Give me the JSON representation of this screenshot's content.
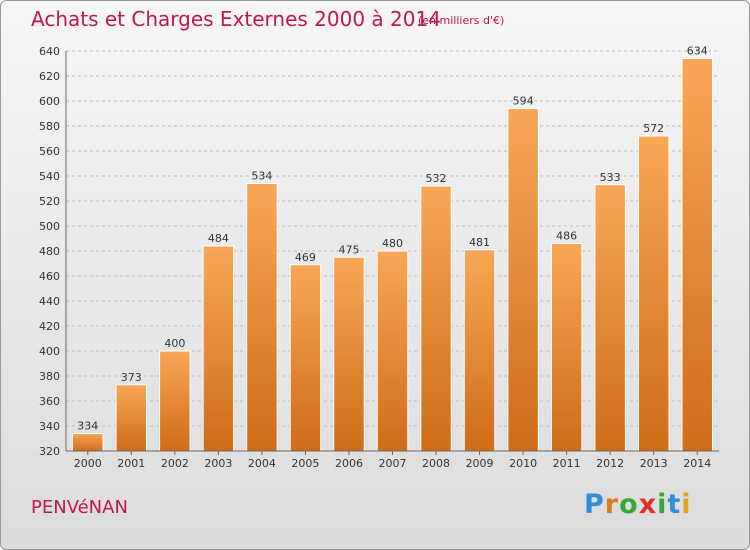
{
  "title": "Achats et Charges Externes 2000 à 2014",
  "unit": "(en milliers d'€)",
  "commune": "PENVéNAN",
  "brand": {
    "letters": [
      "P",
      "r",
      "o",
      "x",
      "i",
      "t",
      "i"
    ],
    "colors": [
      "#2f8fd6",
      "#e07a1e",
      "#3aa63a",
      "#e0302b",
      "#3aa63a",
      "#2f8fd6",
      "#e0a31e"
    ]
  },
  "colors": {
    "title": "#c0174e",
    "bar_top": "#f8a757",
    "bar_bottom": "#cf6c18",
    "grid": "#bdbdbd",
    "axis_text": "#333333"
  },
  "chart_data": {
    "type": "bar",
    "title": "Achats et Charges Externes 2000 à 2014",
    "unit": "(en milliers d'€)",
    "categories": [
      "2000",
      "2001",
      "2002",
      "2003",
      "2004",
      "2005",
      "2006",
      "2007",
      "2008",
      "2009",
      "2010",
      "2011",
      "2012",
      "2013",
      "2014"
    ],
    "values": [
      334,
      373,
      400,
      484,
      534,
      469,
      475,
      480,
      532,
      481,
      594,
      486,
      533,
      572,
      634
    ],
    "ylim": [
      320,
      640
    ],
    "yticks": [
      320,
      340,
      360,
      380,
      400,
      420,
      440,
      460,
      480,
      500,
      520,
      540,
      560,
      580,
      600,
      620,
      640
    ],
    "grid": true,
    "data_labels": true
  }
}
